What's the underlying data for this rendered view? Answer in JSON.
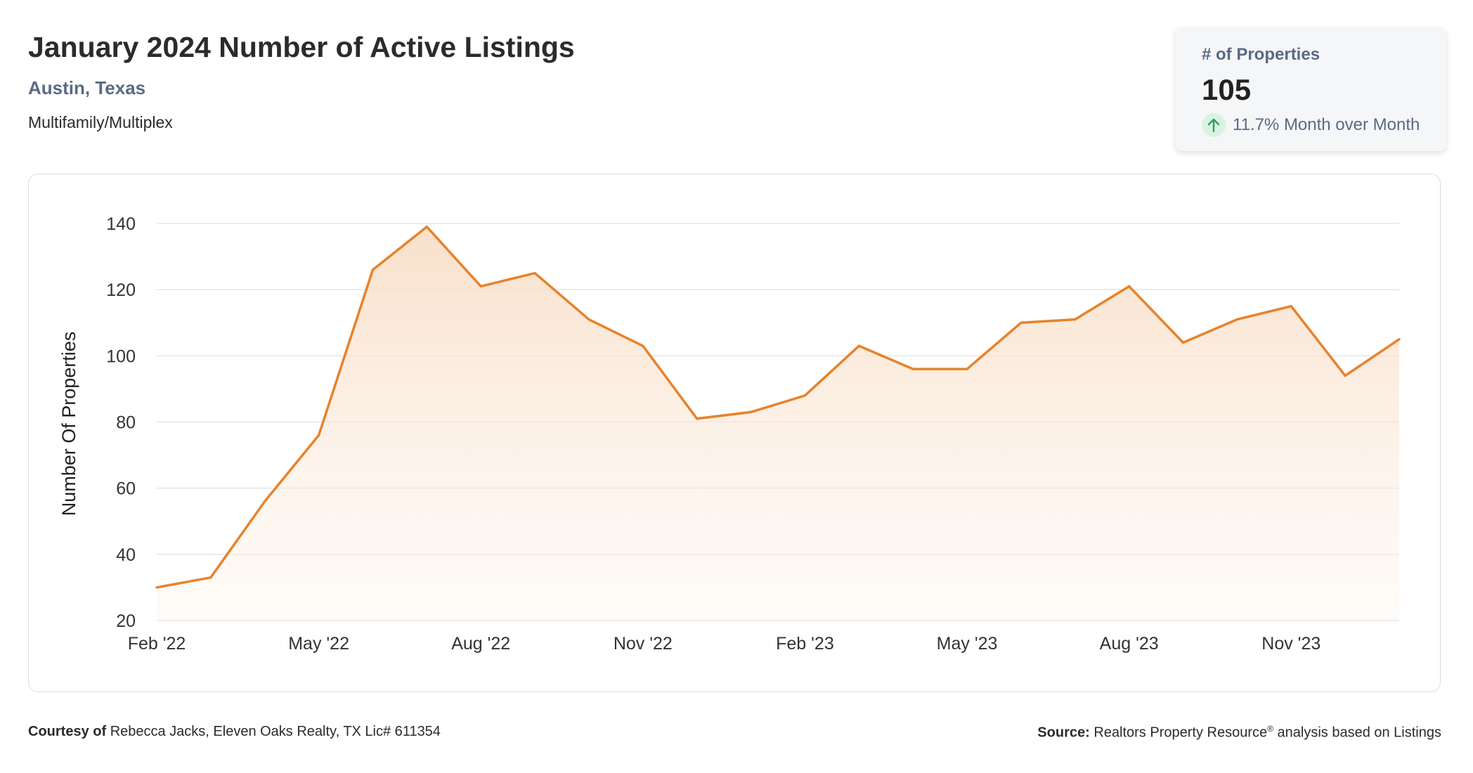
{
  "header": {
    "title": "January 2024 Number of Active Listings",
    "location": "Austin, Texas",
    "category": "Multifamily/Multiplex"
  },
  "kpi": {
    "label": "# of Properties",
    "value": "105",
    "change": "11.7% Month over Month",
    "direction": "up",
    "icon": "arrow-up-icon"
  },
  "colors": {
    "line": "#E8822A",
    "area_top": "#F8DDC5",
    "grid": "#e3e5ea",
    "kpi_icon_bg": "#d9f2e3",
    "kpi_icon": "#2e9e5c",
    "subtitle": "#5a6a84"
  },
  "chart_data": {
    "type": "area",
    "ylabel": "Number Of Properties",
    "xlabel": "",
    "ylim": [
      20,
      140
    ],
    "yticks": [
      20,
      40,
      60,
      80,
      100,
      120,
      140
    ],
    "x_tick_labels": [
      "Feb '22",
      "May '22",
      "Aug '22",
      "Nov '22",
      "Feb '23",
      "May '23",
      "Aug '23",
      "Nov '23"
    ],
    "grid": true,
    "legend": "none",
    "series": [
      {
        "x": [
          "2022-02",
          "2022-03",
          "2022-04",
          "2022-05",
          "2022-06",
          "2022-07",
          "2022-08",
          "2022-09",
          "2022-10",
          "2022-11",
          "2022-12",
          "2023-01",
          "2023-02",
          "2023-03",
          "2023-04",
          "2023-05",
          "2023-06",
          "2023-07",
          "2023-08",
          "2023-09",
          "2023-10",
          "2023-11",
          "2023-12",
          "2024-01"
        ],
        "values": [
          30,
          33,
          56,
          76,
          126,
          139,
          121,
          125,
          111,
          103,
          81,
          83,
          88,
          103,
          96,
          96,
          110,
          111,
          121,
          104,
          111,
          115,
          94,
          105
        ]
      }
    ]
  },
  "footer": {
    "courtesy_label": "Courtesy of",
    "courtesy_text": "Rebecca Jacks, Eleven Oaks Realty, TX Lic# 611354",
    "source_label": "Source:",
    "source_text": "Realtors Property Resource",
    "source_reg": "®",
    "source_suffix": "analysis based on Listings"
  }
}
